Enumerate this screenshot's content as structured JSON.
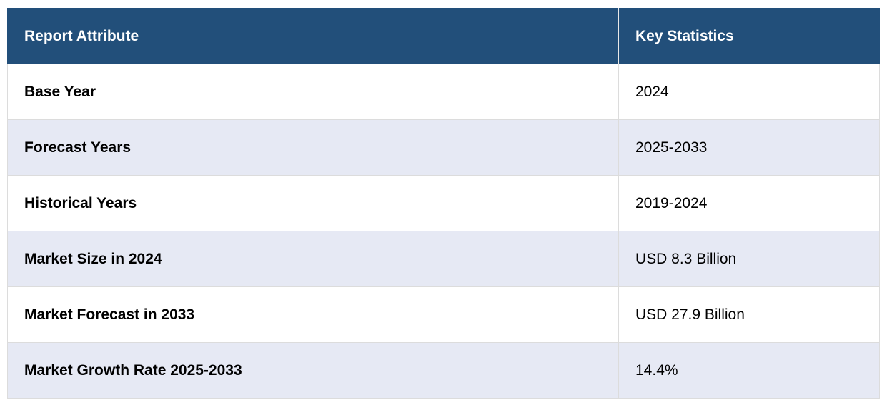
{
  "table": {
    "headers": {
      "attribute": "Report Attribute",
      "statistics": "Key Statistics"
    },
    "rows": [
      {
        "attribute": "Base Year",
        "value": "2024"
      },
      {
        "attribute": "Forecast Years",
        "value": "2025-2033"
      },
      {
        "attribute": "Historical Years",
        "value": "2019-2024"
      },
      {
        "attribute": "Market Size in 2024",
        "value": "USD 8.3 Billion"
      },
      {
        "attribute": "Market Forecast in 2033",
        "value": "USD 27.9 Billion"
      },
      {
        "attribute": "Market Growth Rate 2025-2033",
        "value": "14.4%"
      }
    ]
  },
  "colors": {
    "header_bg": "#224f7a",
    "header_text": "#ffffff",
    "row_alt_bg": "#e6e9f4",
    "row_bg": "#ffffff"
  }
}
